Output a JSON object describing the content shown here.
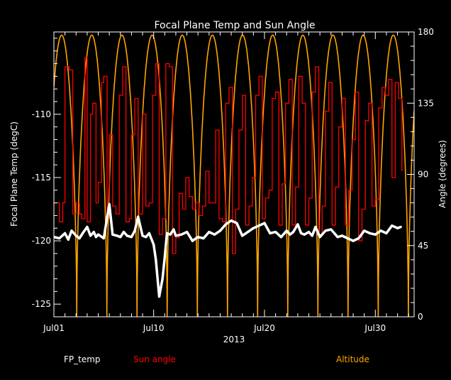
{
  "chart_data": {
    "type": "line",
    "title": "Focal Plane Temp and Sun Angle",
    "xlabel": "2013",
    "ylabel_left": "Focal Plane Temp (degC)",
    "ylabel_right": "Angle (degrees)",
    "x_tick_labels": [
      "Jul01",
      "Jul10",
      "Jul20",
      "Jul30"
    ],
    "x_tick_days": [
      1,
      10,
      20,
      30
    ],
    "xlim_days": [
      1,
      33.5
    ],
    "ylim_left": [
      -126,
      -103.5
    ],
    "y_left_ticks": [
      -110,
      -115,
      -120,
      -125
    ],
    "ylim_right": [
      0,
      180
    ],
    "y_right_ticks": [
      0,
      45,
      90,
      135,
      180
    ],
    "legend": [
      {
        "name": "FP_temp",
        "color": "#ffffff"
      },
      {
        "name": "Sun angle",
        "color": "#ff0000"
      },
      {
        "name": "Altitude",
        "color": "#ffa500"
      }
    ],
    "series": [
      {
        "name": "FP_temp",
        "axis": "left",
        "color": "#ffffff",
        "style": "points",
        "day": [
          1,
          1.5,
          2,
          2.3,
          2.6,
          3,
          3.3,
          3.6,
          4,
          4.3,
          4.6,
          4.8,
          5,
          5.5,
          5.8,
          6,
          6.3,
          6.7,
          7,
          7.3,
          7.6,
          8,
          8.3,
          8.6,
          9,
          9.3,
          9.6,
          10,
          10.2,
          10.5,
          10.8,
          11.0,
          11.2,
          11.5,
          11.8,
          12,
          12.5,
          13,
          13.5,
          14,
          14.5,
          15,
          15.5,
          16,
          16.5,
          17,
          17.5,
          18,
          18.5,
          19,
          19.5,
          20,
          20.5,
          21,
          21.5,
          22,
          22.3,
          22.6,
          23,
          23.3,
          23.6,
          24,
          24.3,
          24.6,
          25,
          25.5,
          26,
          26.3,
          26.6,
          27,
          27.5,
          28,
          28.5,
          29,
          29.5,
          30,
          30.5,
          31,
          31.5,
          32,
          32.3
        ],
        "temp": [
          -119.7,
          -119.8,
          -119.4,
          -119.9,
          -119.2,
          -119.6,
          -119.8,
          -119.4,
          -118.9,
          -119.6,
          -119.3,
          -119.7,
          -119.5,
          -119.8,
          -118.2,
          -117.1,
          -119.5,
          -119.6,
          -119.7,
          -119.3,
          -119.6,
          -119.7,
          -119.2,
          -118.1,
          -119.6,
          -119.7,
          -119.4,
          -120.3,
          -121.5,
          -124.4,
          -123.0,
          -121.3,
          -119.4,
          -119.5,
          -119.1,
          -119.6,
          -119.5,
          -119.3,
          -120.0,
          -119.7,
          -119.8,
          -119.3,
          -119.5,
          -119.2,
          -118.7,
          -118.4,
          -118.6,
          -119.6,
          -119.3,
          -119.0,
          -118.8,
          -118.6,
          -119.4,
          -119.3,
          -119.7,
          -119.2,
          -119.5,
          -119.3,
          -118.7,
          -119.4,
          -119.5,
          -119.3,
          -119.6,
          -118.9,
          -119.7,
          -119.2,
          -119.1,
          -119.4,
          -119.7,
          -119.6,
          -119.8,
          -120.0,
          -119.8,
          -119.2,
          -119.4,
          -119.5,
          -119.2,
          -119.4,
          -118.8,
          -119.0,
          -118.9
        ]
      },
      {
        "name": "Sun angle",
        "axis": "right",
        "color": "#ff0000",
        "style": "step",
        "day": [
          1,
          1.5,
          1.8,
          2.0,
          2.4,
          2.7,
          3.0,
          3.3,
          3.5,
          3.8,
          4.0,
          4.3,
          4.5,
          4.8,
          5.0,
          5.3,
          5.5,
          5.8,
          6.0,
          6.3,
          6.6,
          6.9,
          7.2,
          7.5,
          7.8,
          8.0,
          8.3,
          8.6,
          9.0,
          9.3,
          9.6,
          9.9,
          10.2,
          10.5,
          10.8,
          11.1,
          11.4,
          11.7,
          12.0,
          12.3,
          12.6,
          12.9,
          13.2,
          13.5,
          13.8,
          14.1,
          14.4,
          14.7,
          15.0,
          15.3,
          15.6,
          15.9,
          16.2,
          16.5,
          16.8,
          17.1,
          17.4,
          17.7,
          18.0,
          18.3,
          18.6,
          18.9,
          19.2,
          19.5,
          19.8,
          20.1,
          20.4,
          20.7,
          21.0,
          21.3,
          21.6,
          21.9,
          22.2,
          22.5,
          22.8,
          23.1,
          23.4,
          23.7,
          24.0,
          24.3,
          24.6,
          24.9,
          25.2,
          25.5,
          25.8,
          26.1,
          26.4,
          26.7,
          27.0,
          27.3,
          27.6,
          27.9,
          28.2,
          28.5,
          28.8,
          29.1,
          29.4,
          29.7,
          30.0,
          30.3,
          30.6,
          30.9,
          31.2,
          31.5,
          31.8,
          32.1,
          32.4
        ],
        "angle": [
          72,
          60,
          72,
          158,
          156,
          65,
          72,
          65,
          62,
          164,
          60,
          128,
          135,
          72,
          85,
          148,
          152,
          62,
          115,
          70,
          65,
          140,
          158,
          60,
          62,
          115,
          138,
          65,
          128,
          70,
          72,
          140,
          160,
          52,
          62,
          160,
          158,
          40,
          50,
          78,
          68,
          88,
          76,
          68,
          72,
          64,
          70,
          92,
          72,
          72,
          118,
          62,
          60,
          135,
          145,
          40,
          68,
          118,
          140,
          58,
          70,
          88,
          140,
          152,
          62,
          75,
          80,
          138,
          142,
          58,
          84,
          135,
          150,
          58,
          82,
          152,
          135,
          58,
          75,
          142,
          158,
          52,
          70,
          130,
          148,
          58,
          82,
          120,
          138,
          58,
          80,
          112,
          142,
          48,
          68,
          124,
          135,
          70,
          74,
          132,
          145,
          140,
          150,
          88,
          148,
          138,
          92
        ]
      },
      {
        "name": "Altitude",
        "axis": "right",
        "color": "#ffa500",
        "style": "line",
        "period_days": 2.72,
        "first_peak_day": 1.7,
        "peak_angle": 178,
        "trough_angle": 0
      }
    ]
  }
}
